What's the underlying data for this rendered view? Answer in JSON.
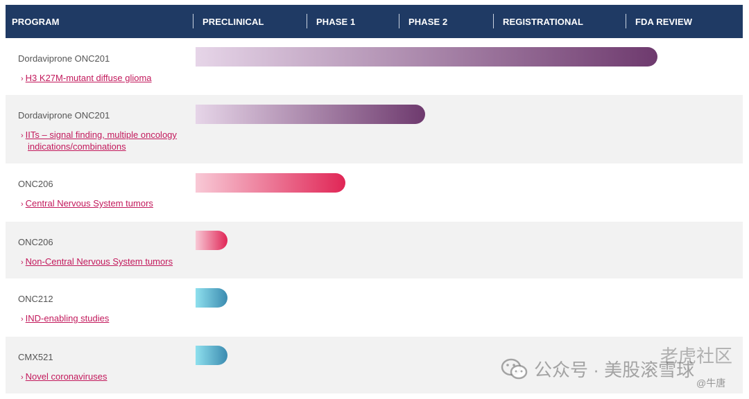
{
  "header": {
    "columns": [
      "PROGRAM",
      "PRECLINICAL",
      "PHASE 1",
      "PHASE 2",
      "REGISTRATIONAL",
      "FDA REVIEW"
    ]
  },
  "rows": [
    {
      "program": "Dordaviprone ONC201",
      "indication": "H3 K27M-mutant diffuse glioma",
      "indication_line2": "",
      "color": "#6e3a6e",
      "stage_progress": 0.925
    },
    {
      "program": "Dordaviprone ONC201",
      "indication": "IITs – signal finding, multiple oncology",
      "indication_line2": "indications/combinations",
      "color": "#6e3a6e",
      "stage_progress": 0.46
    },
    {
      "program": "ONC206",
      "indication": "Central Nervous System tumors",
      "indication_line2": "",
      "color": "#e02656",
      "stage_progress": 0.3
    },
    {
      "program": "ONC206",
      "indication": "Non-Central Nervous System tumors",
      "indication_line2": "",
      "color": "#e02656",
      "stage_progress": 0.05
    },
    {
      "program": "ONC212",
      "indication": "IND-enabling studies",
      "indication_line2": "",
      "color": "#3b8bb0",
      "stage_progress": 0.05
    },
    {
      "program": "CMX521",
      "indication": "Novel coronaviruses",
      "indication_line2": "",
      "color": "#3b8bb0",
      "stage_progress": 0.05
    }
  ],
  "watermark": {
    "main": "公众号 · 美股滚雪球",
    "secondary": "老虎社区",
    "handle": "@牛唐"
  }
}
